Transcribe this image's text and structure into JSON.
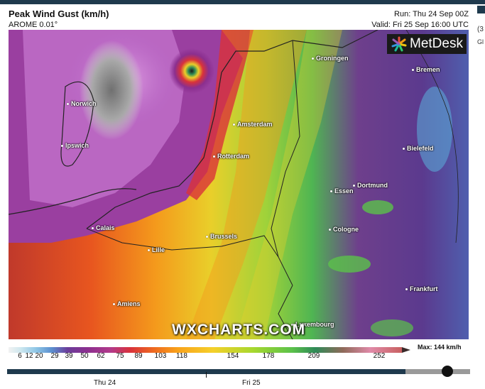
{
  "header": {
    "title": "Peak Wind Gust (km/h)",
    "model": "AROME 0.01°",
    "run": "Run: Thu 24 Sep 00Z",
    "valid": "Valid: Fri 25 Sep 16:00 UTC"
  },
  "brand": {
    "name": "MetDesk",
    "watermark": "WXCHARTS.COM"
  },
  "cities": [
    {
      "name": "Groningen"
    },
    {
      "name": "Bremen"
    },
    {
      "name": "Norwich"
    },
    {
      "name": "Amsterdam"
    },
    {
      "name": "Ipswich"
    },
    {
      "name": "Rotterdam"
    },
    {
      "name": "Bielefeld"
    },
    {
      "name": "Dortmund"
    },
    {
      "name": "Essen"
    },
    {
      "name": "Calais"
    },
    {
      "name": "Brussels"
    },
    {
      "name": "Cologne"
    },
    {
      "name": "Lille"
    },
    {
      "name": "Frankfurt"
    },
    {
      "name": "Amiens"
    },
    {
      "name": "Luxembourg"
    }
  ],
  "scale": {
    "ticks": [
      "6",
      "12",
      "20",
      "29",
      "39",
      "50",
      "62",
      "75",
      "89",
      "103",
      "118",
      "154",
      "178",
      "209",
      "252"
    ],
    "max_label": "Max: 144 km/h",
    "colors": [
      "#f2f2f2",
      "#cfe8ef",
      "#8ec6e6",
      "#5b8fcf",
      "#6a3d9a",
      "#8b2f8f",
      "#b23a8a",
      "#d9323a",
      "#ee6a1f",
      "#f9a21a",
      "#f5d02a",
      "#a8d82e",
      "#5bc24a",
      "#2f8a57",
      "#8f6a5a",
      "#e08aa8",
      "#c86060"
    ]
  },
  "timeline": {
    "day1": "Thu 24",
    "day2": "Fri 25",
    "progress": 0.86
  },
  "side": {
    "line1": "(3",
    "line2": "Gl"
  }
}
